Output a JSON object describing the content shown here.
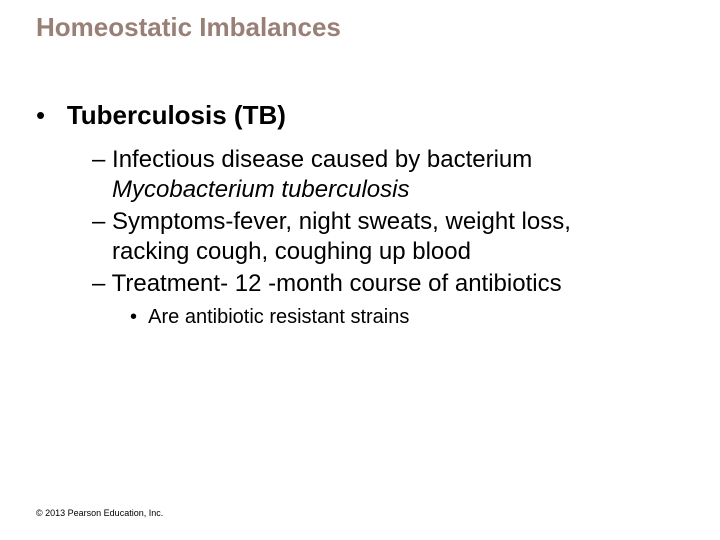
{
  "title": {
    "text": "Homeostatic Imbalances",
    "color": "#9a7f76",
    "fontsize": 26
  },
  "content": {
    "color": "#000000",
    "l1": {
      "bullet": "•",
      "text": "Tuberculosis (TB)",
      "fontsize": 26
    },
    "l2": {
      "fontsize": 24,
      "items": [
        {
          "dash": "–",
          "line1_prefix": "Infectious disease caused by bacterium",
          "line2_italic": "Mycobacterium tuberculosis"
        },
        {
          "dash": "–",
          "line1": "Symptoms-fever, night sweats, weight loss,",
          "line2": "racking cough, coughing up blood"
        },
        {
          "dash": "–",
          "line1": "Treatment- 12 -month course of antibiotics"
        }
      ]
    },
    "l3": {
      "fontsize": 20,
      "bullet": "•",
      "text": "Are antibiotic resistant strains"
    }
  },
  "copyright": {
    "text": "© 2013 Pearson Education, Inc.",
    "fontsize": 9,
    "color": "#000000"
  }
}
